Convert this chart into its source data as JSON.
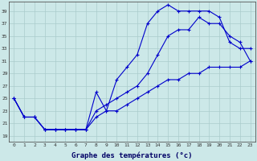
{
  "title": "Graphe des températures (°c)",
  "background_color": "#cce8e8",
  "grid_color": "#aacccc",
  "line_color": "#0000cc",
  "x_ticks": [
    0,
    1,
    2,
    3,
    4,
    5,
    6,
    7,
    8,
    9,
    10,
    11,
    12,
    13,
    14,
    15,
    16,
    17,
    18,
    19,
    20,
    21,
    22,
    23
  ],
  "y_ticks": [
    19,
    21,
    23,
    25,
    27,
    29,
    31,
    33,
    35,
    37,
    39
  ],
  "ylim": [
    18.0,
    40.5
  ],
  "xlim": [
    -0.5,
    23.5
  ],
  "curve1_x": [
    0,
    1,
    2,
    3,
    4,
    5,
    6,
    7,
    8,
    9,
    10,
    11,
    12,
    13,
    14,
    15,
    16,
    17,
    18,
    19,
    20,
    21,
    22,
    23
  ],
  "curve1_y": [
    25,
    22,
    22,
    20,
    20,
    20,
    20,
    20,
    26,
    23,
    28,
    30,
    32,
    37,
    39,
    40,
    39,
    39,
    39,
    39,
    38,
    34,
    33,
    33
  ],
  "curve2_x": [
    0,
    1,
    2,
    3,
    4,
    5,
    6,
    7,
    8,
    9,
    10,
    11,
    12,
    13,
    14,
    15,
    16,
    17,
    18,
    19,
    20,
    21,
    22,
    23
  ],
  "curve2_y": [
    25,
    22,
    22,
    20,
    20,
    20,
    20,
    20,
    23,
    24,
    25,
    26,
    27,
    29,
    32,
    35,
    36,
    36,
    38,
    37,
    37,
    35,
    34,
    31
  ],
  "curve3_x": [
    0,
    1,
    2,
    3,
    4,
    5,
    6,
    7,
    8,
    9,
    10,
    11,
    12,
    13,
    14,
    15,
    16,
    17,
    18,
    19,
    20,
    21,
    22,
    23
  ],
  "curve3_y": [
    25,
    22,
    22,
    20,
    20,
    20,
    20,
    20,
    22,
    23,
    23,
    24,
    25,
    26,
    27,
    28,
    28,
    29,
    29,
    30,
    30,
    30,
    30,
    31
  ]
}
